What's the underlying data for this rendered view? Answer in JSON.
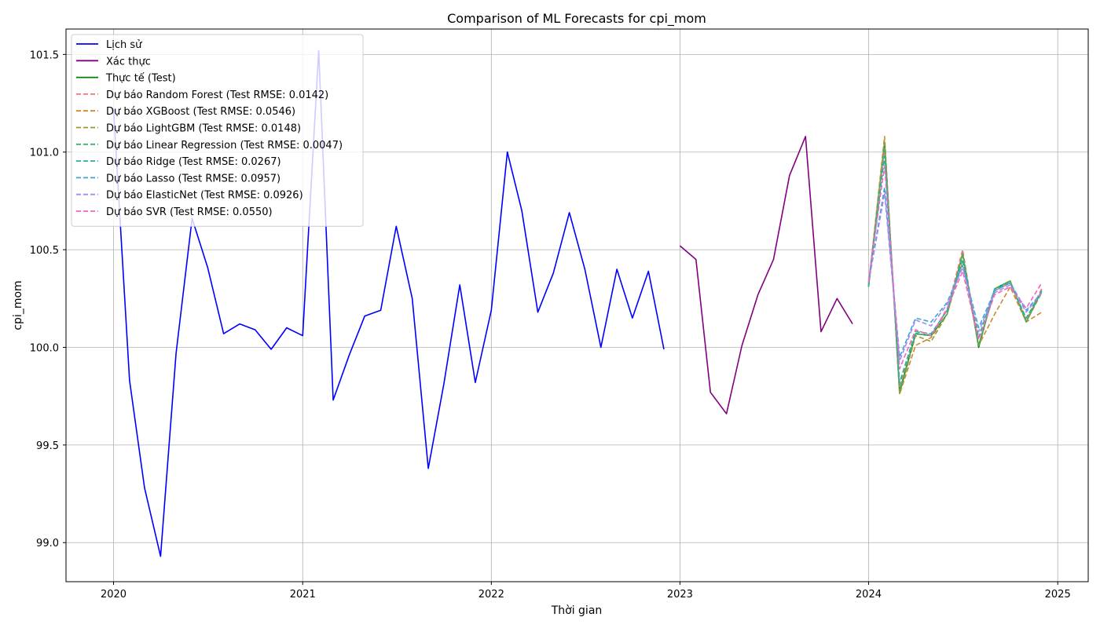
{
  "chart_data": {
    "type": "line",
    "title": "Comparison of ML Forecasts for cpi_mom",
    "xlabel": "Thời gian",
    "ylabel": "cpi_mom",
    "xlim": [
      "2019-10-01",
      "2025-03-01"
    ],
    "ylim": [
      98.8,
      101.63
    ],
    "grid": true,
    "legend_position": "top-left",
    "x_ticks": [
      "2020",
      "2021",
      "2022",
      "2023",
      "2024",
      "2025"
    ],
    "y_ticks": [
      "99.0",
      "99.5",
      "100.0",
      "100.5",
      "101.0",
      "101.5"
    ],
    "series": [
      {
        "name": "Lịch sử",
        "color": "#0000ff",
        "dash": "solid",
        "x": [
          "2020-01-01",
          "2020-02-01",
          "2020-03-01",
          "2020-04-01",
          "2020-05-01",
          "2020-06-01",
          "2020-07-01",
          "2020-08-01",
          "2020-09-01",
          "2020-10-01",
          "2020-11-01",
          "2020-12-01",
          "2021-01-01",
          "2021-02-01",
          "2021-03-01",
          "2021-04-01",
          "2021-05-01",
          "2021-06-01",
          "2021-07-01",
          "2021-08-01",
          "2021-09-01",
          "2021-10-01",
          "2021-11-01",
          "2021-12-01",
          "2022-01-01",
          "2022-02-01",
          "2022-03-01",
          "2022-04-01",
          "2022-05-01",
          "2022-06-01",
          "2022-07-01",
          "2022-08-01",
          "2022-09-01",
          "2022-10-01",
          "2022-11-01",
          "2022-12-01"
        ],
        "y": [
          101.22,
          99.83,
          99.28,
          98.93,
          99.97,
          100.66,
          100.41,
          100.07,
          100.12,
          100.09,
          99.99,
          100.1,
          100.06,
          101.52,
          99.73,
          99.96,
          100.16,
          100.19,
          100.62,
          100.25,
          99.38,
          99.81,
          100.32,
          99.82,
          100.19,
          101.0,
          100.7,
          100.18,
          100.38,
          100.69,
          100.4,
          100.0,
          100.4,
          100.15,
          100.39,
          99.99
        ]
      },
      {
        "name": "Xác thực",
        "color": "#800080",
        "dash": "solid",
        "x": [
          "2023-01-01",
          "2023-02-01",
          "2023-03-01",
          "2023-04-01",
          "2023-05-01",
          "2023-06-01",
          "2023-07-01",
          "2023-08-01",
          "2023-09-01",
          "2023-10-01",
          "2023-11-01",
          "2023-12-01"
        ],
        "y": [
          100.52,
          100.45,
          99.77,
          99.66,
          100.01,
          100.27,
          100.45,
          100.88,
          101.08,
          100.08,
          100.25,
          100.12
        ]
      },
      {
        "name": "Thực tế (Test)",
        "color": "#008000",
        "dash": "solid",
        "x": [
          "2024-01-01",
          "2024-02-01",
          "2024-03-01",
          "2024-04-01",
          "2024-05-01",
          "2024-06-01",
          "2024-07-01",
          "2024-08-01",
          "2024-09-01",
          "2024-10-01",
          "2024-11-01",
          "2024-12-01"
        ],
        "y": [
          100.31,
          101.05,
          99.77,
          100.07,
          100.06,
          100.17,
          100.48,
          100.0,
          100.3,
          100.34,
          100.13,
          100.29
        ]
      },
      {
        "name": "Dự báo Random Forest (Test RMSE: 0.0142)",
        "color": "#f2727c",
        "dash": "dashed",
        "x": [
          "2024-01-01",
          "2024-02-01",
          "2024-03-01",
          "2024-04-01",
          "2024-05-01",
          "2024-06-01",
          "2024-07-01",
          "2024-08-01",
          "2024-09-01",
          "2024-10-01",
          "2024-11-01",
          "2024-12-01"
        ],
        "y": [
          100.33,
          101.02,
          99.8,
          100.09,
          100.06,
          100.19,
          100.5,
          100.01,
          100.29,
          100.33,
          100.14,
          100.3
        ]
      },
      {
        "name": "Dự báo XGBoost (Test RMSE: 0.0546)",
        "color": "#cc8a2e",
        "dash": "dashed",
        "x": [
          "2024-01-01",
          "2024-02-01",
          "2024-03-01",
          "2024-04-01",
          "2024-05-01",
          "2024-06-01",
          "2024-07-01",
          "2024-08-01",
          "2024-09-01",
          "2024-10-01",
          "2024-11-01",
          "2024-12-01"
        ],
        "y": [
          100.32,
          101.08,
          99.76,
          100.01,
          100.05,
          100.17,
          100.44,
          100.01,
          100.17,
          100.31,
          100.13,
          100.18
        ]
      },
      {
        "name": "Dự báo LightGBM (Test RMSE: 0.0148)",
        "color": "#9a9a30",
        "dash": "dashed",
        "x": [
          "2024-01-01",
          "2024-02-01",
          "2024-03-01",
          "2024-04-01",
          "2024-05-01",
          "2024-06-01",
          "2024-07-01",
          "2024-08-01",
          "2024-09-01",
          "2024-10-01",
          "2024-11-01",
          "2024-12-01"
        ],
        "y": [
          100.31,
          101.06,
          99.76,
          100.06,
          100.03,
          100.17,
          100.48,
          100.01,
          100.29,
          100.34,
          100.13,
          100.28
        ]
      },
      {
        "name": "Dự báo Linear Regression (Test RMSE: 0.0047)",
        "color": "#3cb371",
        "dash": "dashed",
        "x": [
          "2024-01-01",
          "2024-02-01",
          "2024-03-01",
          "2024-04-01",
          "2024-05-01",
          "2024-06-01",
          "2024-07-01",
          "2024-08-01",
          "2024-09-01",
          "2024-10-01",
          "2024-11-01",
          "2024-12-01"
        ],
        "y": [
          100.31,
          101.04,
          99.78,
          100.07,
          100.06,
          100.17,
          100.48,
          100.01,
          100.3,
          100.34,
          100.13,
          100.29
        ]
      },
      {
        "name": "Dự báo Ridge (Test RMSE: 0.0267)",
        "color": "#2ab0a0",
        "dash": "dashed",
        "x": [
          "2024-01-01",
          "2024-02-01",
          "2024-03-01",
          "2024-04-01",
          "2024-05-01",
          "2024-06-01",
          "2024-07-01",
          "2024-08-01",
          "2024-09-01",
          "2024-10-01",
          "2024-11-01",
          "2024-12-01"
        ],
        "y": [
          100.32,
          100.98,
          99.82,
          100.08,
          100.07,
          100.19,
          100.45,
          100.05,
          100.3,
          100.33,
          100.15,
          100.29
        ]
      },
      {
        "name": "Dự báo Lasso (Test RMSE: 0.0957)",
        "color": "#3ea6d6",
        "dash": "dashed",
        "x": [
          "2024-01-01",
          "2024-02-01",
          "2024-03-01",
          "2024-04-01",
          "2024-05-01",
          "2024-06-01",
          "2024-07-01",
          "2024-08-01",
          "2024-09-01",
          "2024-10-01",
          "2024-11-01",
          "2024-12-01"
        ],
        "y": [
          100.33,
          100.82,
          99.95,
          100.15,
          100.13,
          100.23,
          100.42,
          100.1,
          100.29,
          100.33,
          100.19,
          100.28
        ]
      },
      {
        "name": "Dự báo ElasticNet (Test RMSE: 0.0926)",
        "color": "#a08ef0",
        "dash": "dashed",
        "x": [
          "2024-01-01",
          "2024-02-01",
          "2024-03-01",
          "2024-04-01",
          "2024-05-01",
          "2024-06-01",
          "2024-07-01",
          "2024-08-01",
          "2024-09-01",
          "2024-10-01",
          "2024-11-01",
          "2024-12-01"
        ],
        "y": [
          100.33,
          100.79,
          99.93,
          100.14,
          100.11,
          100.22,
          100.41,
          100.08,
          100.28,
          100.32,
          100.18,
          100.28
        ]
      },
      {
        "name": "Dự báo SVR (Test RMSE: 0.0550)",
        "color": "#f066c8",
        "dash": "dashed",
        "x": [
          "2024-01-01",
          "2024-02-01",
          "2024-03-01",
          "2024-04-01",
          "2024-05-01",
          "2024-06-01",
          "2024-07-01",
          "2024-08-01",
          "2024-09-01",
          "2024-10-01",
          "2024-11-01",
          "2024-12-01"
        ],
        "y": [
          100.34,
          100.93,
          99.89,
          100.09,
          100.06,
          100.2,
          100.39,
          100.04,
          100.27,
          100.31,
          100.2,
          100.33
        ]
      }
    ]
  }
}
